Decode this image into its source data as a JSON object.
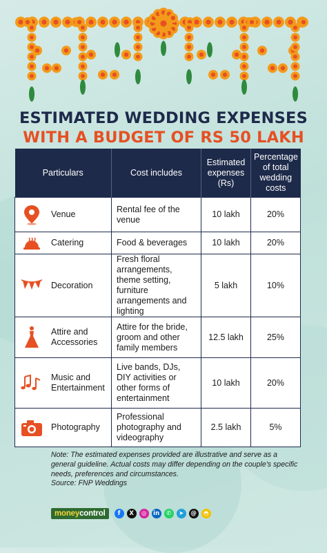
{
  "title": {
    "line1": "ESTIMATED WEDDING EXPENSES",
    "line2": "WITH A BUDGET OF RS 50 LAKH"
  },
  "table": {
    "headers": [
      "Particulars",
      "Cost includes",
      "Estimated expenses (Rs)",
      "Percentage of total wedding costs"
    ],
    "rows": [
      {
        "icon": "location-pin-icon",
        "particular": "Venue",
        "includes": "Rental fee of the venue",
        "cost": "10 lakh",
        "pct": "20%"
      },
      {
        "icon": "food-cloche-icon",
        "particular": "Catering",
        "includes": "Food & beverages",
        "cost": "10 lakh",
        "pct": "20%"
      },
      {
        "icon": "bunting-flags-icon",
        "particular": "Decoration",
        "includes": "Fresh floral arrangements, theme setting, furniture arrangements and lighting",
        "cost": "5 lakh",
        "pct": "10%"
      },
      {
        "icon": "bridal-dress-icon",
        "particular": "Attire and Accessories",
        "includes": "Attire for the bride, groom and other family members",
        "cost": "12.5 lakh",
        "pct": "25%"
      },
      {
        "icon": "music-notes-icon",
        "particular": "Music and Entertainment",
        "includes": "Live bands, DJs, DIY activities or other forms of entertainment",
        "cost": "10 lakh",
        "pct": "20%"
      },
      {
        "icon": "camera-icon",
        "particular": "Photography",
        "includes": "Professional photography and videography",
        "cost": "2.5 lakh",
        "pct": "5%"
      }
    ]
  },
  "note": {
    "text": "Note: The estimated expenses provided are illustrative and serve as a general guideline. Actual costs may differ depending on the couple's specific needs, preferences and circumstances.",
    "source": "Source: FNP Weddings"
  },
  "footer": {
    "brand_part1": "money",
    "brand_part2": "control",
    "social": [
      {
        "name": "facebook-icon",
        "glyph": "f",
        "color": "#1877f2"
      },
      {
        "name": "x-icon",
        "glyph": "X",
        "color": "#111111"
      },
      {
        "name": "instagram-icon",
        "glyph": "◎",
        "color": "#d6249f"
      },
      {
        "name": "linkedin-icon",
        "glyph": "in",
        "color": "#0a66c2"
      },
      {
        "name": "whatsapp-icon",
        "glyph": "✆",
        "color": "#25d366"
      },
      {
        "name": "telegram-icon",
        "glyph": "➤",
        "color": "#229ed9"
      },
      {
        "name": "threads-icon",
        "glyph": "@",
        "color": "#111111"
      },
      {
        "name": "snapchat-icon",
        "glyph": "◓",
        "color": "#f2c200"
      }
    ]
  },
  "colors": {
    "navy": "#1e2a4a",
    "orange": "#e65022",
    "marigold": "#f39a1a",
    "leaf": "#2f8a3e",
    "background": "#c9e4df"
  }
}
